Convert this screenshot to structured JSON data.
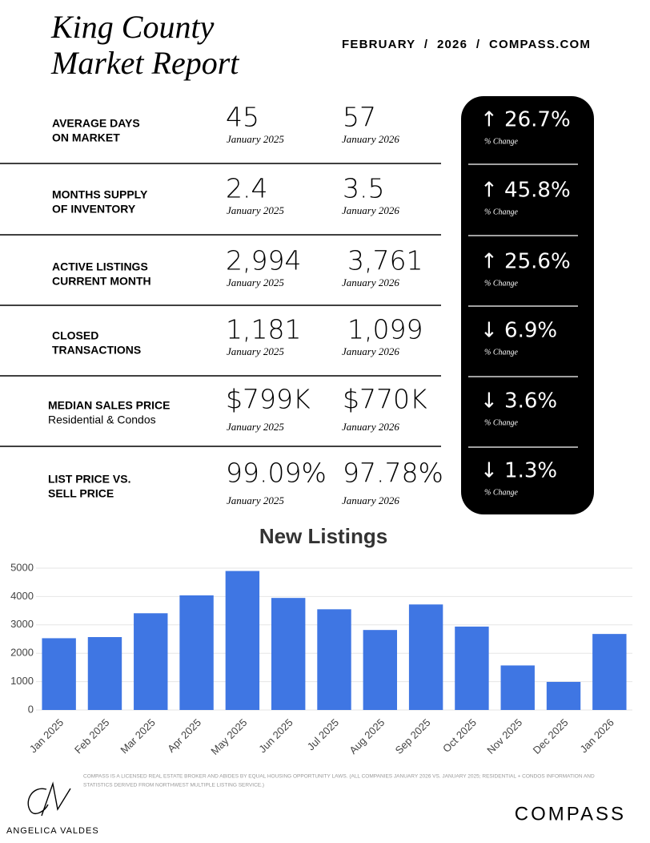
{
  "header": {
    "title_lines": [
      "King County",
      "Market Report"
    ],
    "dateline": "FEBRUARY  /  2026  /  COMPASS.COM"
  },
  "metrics": [
    {
      "label_lines": [
        "AVERAGE DAYS",
        "ON MARKET"
      ],
      "value_2025": "45",
      "period_2025": "January 2025",
      "value_2026": "57",
      "period_2026": "January 2026",
      "change": "↑ 26.7%",
      "change_label": "% Change"
    },
    {
      "label_lines": [
        "MONTHS SUPPLY",
        "OF INVENTORY"
      ],
      "value_2025": "2.4",
      "period_2025": "January 2025",
      "value_2026": "3.5",
      "period_2026": "January 2026",
      "change": "↑ 45.8%",
      "change_label": "% Change"
    },
    {
      "label_lines": [
        "ACTIVE LISTINGS",
        "CURRENT MONTH"
      ],
      "value_2025": "2,994",
      "period_2025": "January 2025",
      "value_2026": "3,761",
      "period_2026": "January 2026",
      "change": "↑ 25.6%",
      "change_label": "% Change"
    },
    {
      "label_lines": [
        "CLOSED",
        "TRANSACTIONS"
      ],
      "value_2025": "1,181",
      "period_2025": "January 2025",
      "value_2026": "1,099",
      "period_2026": "January 2026",
      "change": "↓ 6.9%",
      "change_label": "% Change"
    },
    {
      "label_lines": [
        "MEDIAN SALES PRICE",
        "Residential & Condos"
      ],
      "value_2025": "$799K",
      "period_2025": "January 2025",
      "value_2026": "$770K",
      "period_2026": "January 2026",
      "change": "↓ 3.6%",
      "change_label": "% Change"
    },
    {
      "label_lines": [
        "LIST PRICE VS.",
        "SELL PRICE"
      ],
      "value_2025": "99.09%",
      "period_2025": "January 2025",
      "value_2026": "97.78%",
      "period_2026": "January 2026",
      "change": "↓ 1.3%",
      "change_label": "% Change"
    }
  ],
  "chart_data": {
    "type": "bar",
    "title": "New Listings",
    "categories": [
      "Jan 2025",
      "Feb 2025",
      "Mar 2025",
      "Apr 2025",
      "May 2025",
      "Jun 2025",
      "Jul 2025",
      "Aug 2025",
      "Sep 2025",
      "Oct 2025",
      "Nov 2025",
      "Dec 2025",
      "Jan 2026"
    ],
    "values": [
      2530,
      2570,
      3410,
      4040,
      4900,
      3950,
      3550,
      2820,
      3720,
      2940,
      1570,
      990,
      2680
    ],
    "color": "#3f76e3",
    "ylim": [
      0,
      5000
    ],
    "yticks": [
      0,
      1000,
      2000,
      3000,
      4000,
      5000
    ],
    "grid": true
  },
  "footer": {
    "disclaimer_lines": [
      "COMPASS IS A LICENSED REAL ESTATE BROKER AND ABIDES BY EQUAL HOUSING OPPORTUNITY LAWS. (ALL COMPANIES JANUARY 2026 VS. JANUARY 2025; RESIDENTIAL + CONDOS INFORMATION AND",
      "STATISTICS DERIVED FROM NORTHWEST MULTIPLE LISTING SERVICE.)"
    ],
    "agent_name": "ANGELICA VALDES",
    "brand": "COMPASS"
  }
}
